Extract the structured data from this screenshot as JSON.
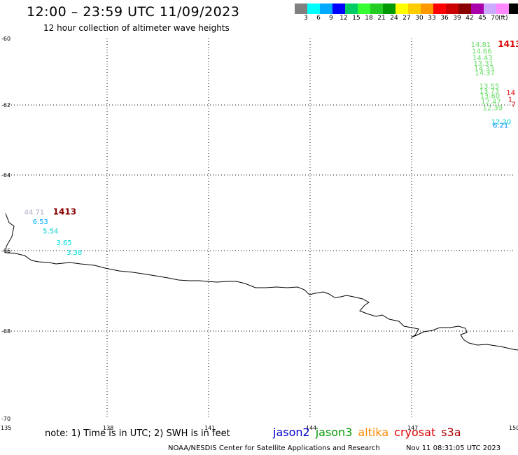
{
  "header": {
    "title": "12:00 – 23:59 UTC 11/09/2023",
    "subtitle": "12 hour collection of altimeter wave heights"
  },
  "colorbar": {
    "units": "(ft)",
    "swatches": [
      {
        "color": "#808080",
        "label": ""
      },
      {
        "color": "#00ffff",
        "label": "3"
      },
      {
        "color": "#00aaff",
        "label": "6"
      },
      {
        "color": "#0000ff",
        "label": "9"
      },
      {
        "color": "#00cc66",
        "label": "12"
      },
      {
        "color": "#33ff33",
        "label": "15"
      },
      {
        "color": "#22cc22",
        "label": "18"
      },
      {
        "color": "#009900",
        "label": "21"
      },
      {
        "color": "#ffff00",
        "label": "24"
      },
      {
        "color": "#ffcc00",
        "label": "27"
      },
      {
        "color": "#ff9900",
        "label": "30"
      },
      {
        "color": "#ff0000",
        "label": "33"
      },
      {
        "color": "#cc0000",
        "label": "36"
      },
      {
        "color": "#880000",
        "label": "39"
      },
      {
        "color": "#aa00aa",
        "label": "42"
      },
      {
        "color": "#ccaaff",
        "label": "45"
      },
      {
        "color": "#ff88ff",
        "label": "70"
      },
      {
        "color": "#000000",
        "label": ""
      }
    ]
  },
  "map": {
    "lon_range": [
      135,
      150
    ],
    "lat_range": [
      -70,
      -60
    ],
    "lon_ticks": [
      "135",
      "138",
      "141",
      "144",
      "147",
      "150"
    ],
    "lat_ticks": [
      "-60",
      "-62",
      "-64",
      "-66",
      "-68",
      "-70"
    ],
    "observations": [
      {
        "text": "44.71",
        "lon": 135.55,
        "lat": -65.05,
        "color": "#aaaacc"
      },
      {
        "text": "1413",
        "lon": 136.4,
        "lat": -65.05,
        "color": "#880000"
      },
      {
        "text": "6.53",
        "lon": 135.8,
        "lat": -65.3,
        "color": "#00aaff"
      },
      {
        "text": "5.54",
        "lon": 136.1,
        "lat": -65.55,
        "color": "#00cccc"
      },
      {
        "text": "3.65",
        "lon": 136.5,
        "lat": -65.85,
        "color": "#00dddd"
      },
      {
        "text": "3.38",
        "lon": 136.8,
        "lat": -66.1,
        "color": "#00dddd"
      },
      {
        "text": "14.81",
        "lon": 148.75,
        "lat": -60.25,
        "color": "#66dd66"
      },
      {
        "text": "1413",
        "lon": 149.55,
        "lat": -60.25,
        "color": "#dd0000"
      },
      {
        "text": "14.66",
        "lon": 148.78,
        "lat": -60.45,
        "color": "#66dd66"
      },
      {
        "text": "14.43",
        "lon": 148.8,
        "lat": -60.65,
        "color": "#66dd66"
      },
      {
        "text": "13.31",
        "lon": 148.83,
        "lat": -60.82,
        "color": "#66dd66"
      },
      {
        "text": "14.33",
        "lon": 148.85,
        "lat": -60.98,
        "color": "#66dd66"
      },
      {
        "text": "14.37",
        "lon": 148.87,
        "lat": -61.1,
        "color": "#66dd66"
      },
      {
        "text": "13.55",
        "lon": 149.0,
        "lat": -61.5,
        "color": "#66dd66"
      },
      {
        "text": "13.73",
        "lon": 149.0,
        "lat": -61.65,
        "color": "#66dd66"
      },
      {
        "text": "13.60",
        "lon": 149.02,
        "lat": -61.8,
        "color": "#66dd66"
      },
      {
        "text": "12.47",
        "lon": 149.05,
        "lat": -61.97,
        "color": "#66dd66"
      },
      {
        "text": "12.39",
        "lon": 149.1,
        "lat": -62.15,
        "color": "#66dd66"
      },
      {
        "text": "14",
        "lon": 149.8,
        "lat": -61.7,
        "color": "#dd0000"
      },
      {
        "text": "1",
        "lon": 149.85,
        "lat": -61.9,
        "color": "#dd0000"
      },
      {
        "text": "7",
        "lon": 149.95,
        "lat": -62.05,
        "color": "#dd0000"
      },
      {
        "text": "12.20",
        "lon": 149.35,
        "lat": -62.55,
        "color": "#00cccc"
      },
      {
        "text": "6.21",
        "lon": 149.4,
        "lat": -62.65,
        "color": "#0088ff"
      }
    ]
  },
  "footer": {
    "note": "note:  1) Time is in UTC; 2) SWH is in feet",
    "missions": [
      {
        "name": "jason2",
        "color": "#0000cc"
      },
      {
        "name": "jason3",
        "color": "#009900"
      },
      {
        "name": "altika",
        "color": "#ff8800"
      },
      {
        "name": "cryosat",
        "color": "#dd0000"
      },
      {
        "name": "s3a",
        "color": "#aa0000"
      }
    ],
    "credit": "NOAA/NESDIS Center for Satellite Applications and Research",
    "timestamp": "Nov 11 08:31:05 UTC 2023"
  }
}
